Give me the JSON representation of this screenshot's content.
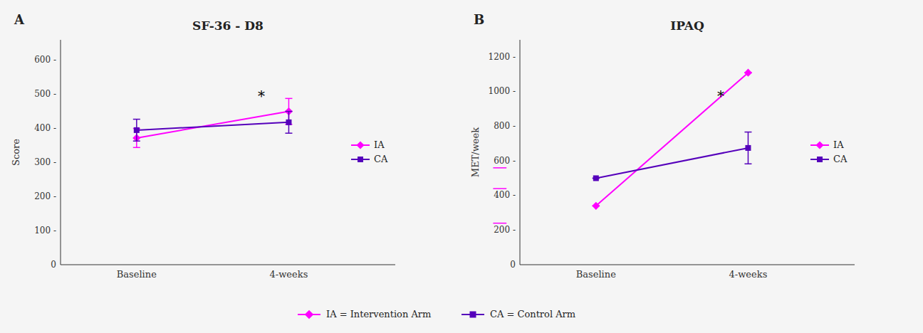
{
  "chart_data": [
    {
      "type": "line",
      "title": "SF-36 - D8",
      "panel_label": "A",
      "y_label": "Score",
      "categories": [
        "Baseline",
        "4-weeks"
      ],
      "series": [
        {
          "name": "IA",
          "color": "#FF00FF",
          "marker": "diamond",
          "values": [
            372,
            450
          ],
          "errors": [
            28,
            38
          ]
        },
        {
          "name": "CA",
          "color": "#5500BB",
          "marker": "square",
          "values": [
            395,
            418
          ],
          "errors": [
            32,
            32
          ]
        }
      ],
      "ylim": [
        0,
        660
      ],
      "yticks": [
        0,
        {
          "value": 100,
          "label": "100 -"
        },
        {
          "value": 200,
          "label": "200 -"
        },
        {
          "value": 300,
          "label": "300 -"
        },
        {
          "value": 400,
          "label": "400 -"
        },
        {
          "value": 500,
          "label": "500 -"
        },
        {
          "value": 600,
          "label": "600 -"
        }
      ],
      "annotations": [
        {
          "text": "*",
          "x": 0.82,
          "y": 495
        }
      ],
      "legend": "center right",
      "grid": false
    },
    {
      "type": "line",
      "title": "IPAQ",
      "panel_label": "B",
      "y_label": "MET/week",
      "categories": [
        "Baseline",
        "4-weeks"
      ],
      "series": [
        {
          "name": "IA",
          "color": "#FF00FF",
          "marker": "diamond",
          "values": [
            340,
            1110
          ],
          "errors": [
            0,
            0
          ]
        },
        {
          "name": "CA",
          "color": "#5500BB",
          "marker": "square",
          "values": [
            500,
            675
          ],
          "errors": [
            0,
            92
          ]
        }
      ],
      "ylim": [
        0,
        1300
      ],
      "yticks": [
        0,
        {
          "value": 200,
          "label": "200 -"
        },
        {
          "value": 400,
          "label": "400 -"
        },
        {
          "value": 600,
          "label": "600 -"
        },
        {
          "value": 800,
          "label": "800 -"
        },
        {
          "value": 1000,
          "label": "1000 -"
        },
        {
          "value": 1200,
          "label": "1200 -"
        }
      ],
      "annotations": [
        {
          "text": "*",
          "x": 0.82,
          "y": 975
        }
      ],
      "side_marks": [
        560,
        440,
        240
      ],
      "legend": "center right",
      "grid": false
    }
  ],
  "figure_legend": [
    {
      "name": "IA = Intervention Arm",
      "color": "#FF00FF",
      "marker": "diamond"
    },
    {
      "name": "CA = Control Arm",
      "color": "#5500BB",
      "marker": "square"
    }
  ],
  "background_color": "#F5F5F5"
}
